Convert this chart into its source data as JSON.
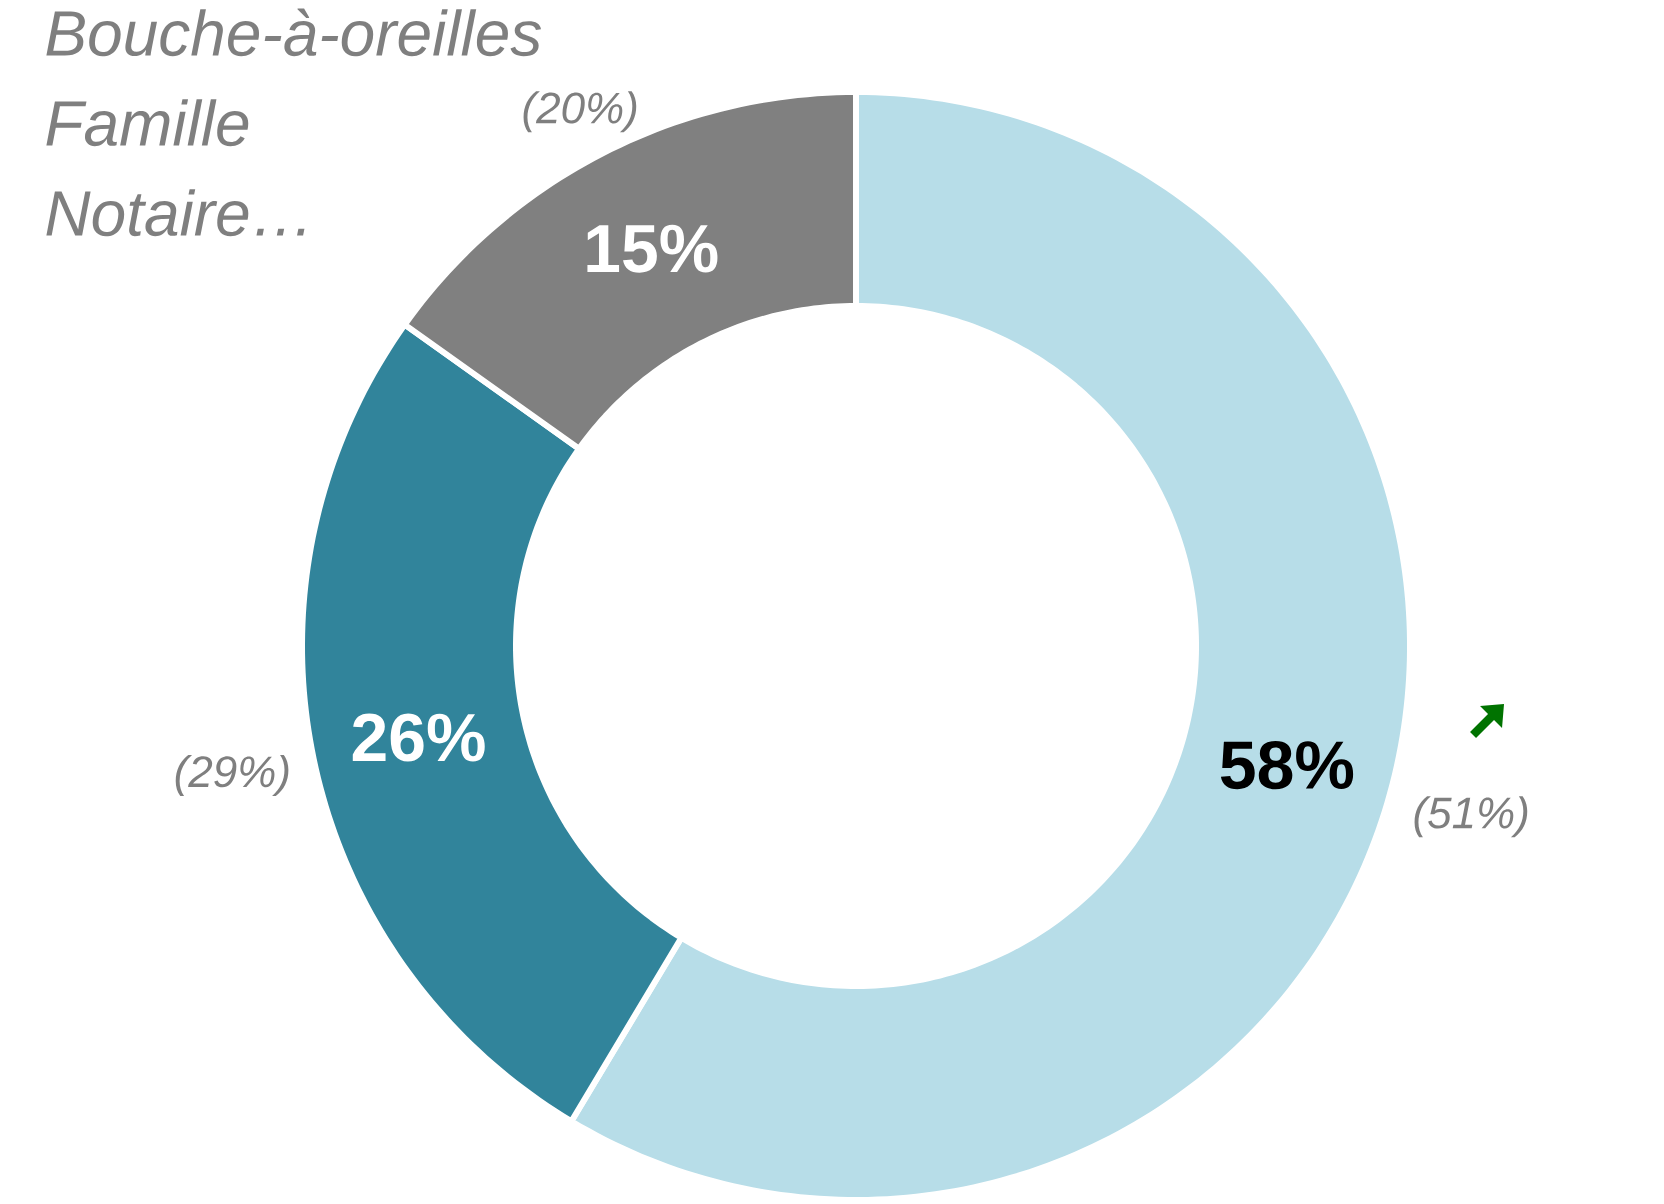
{
  "chart_data": {
    "type": "donut",
    "categories": [
      null,
      null,
      "Bouche-à-oreilles Famille Notaire…"
    ],
    "values": [
      58,
      26,
      15
    ],
    "colors": [
      "#b7dde8",
      "#31849b",
      "#808080"
    ],
    "data_labels": true,
    "value_labels": [
      "58%",
      "26%",
      "15%"
    ],
    "annotations": [
      "(51%)",
      "(29%)",
      "(20%)"
    ]
  }
}
